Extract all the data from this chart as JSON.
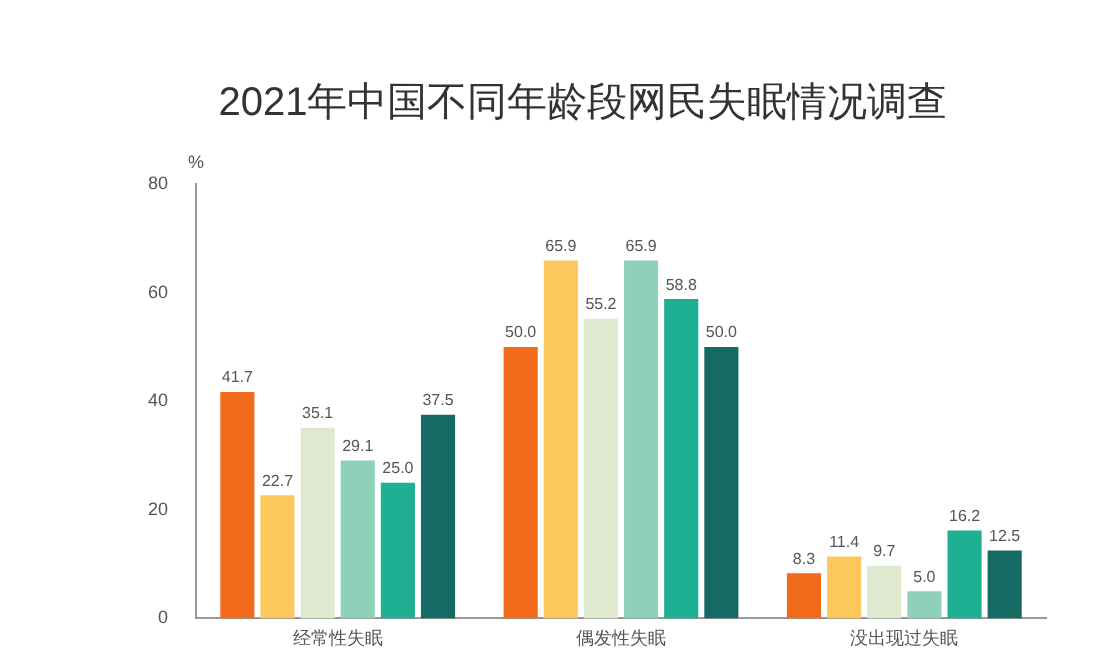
{
  "chart_data": {
    "type": "bar",
    "title": "2021年中国不同年龄段网民失眠情况调查",
    "ylabel": "%",
    "categories": [
      "经常性失眠",
      "偶发性失眠",
      "没出现过失眠"
    ],
    "ylim": [
      0,
      80
    ],
    "yticks": [
      0,
      20,
      40,
      60,
      80
    ],
    "grid": false,
    "legend": false,
    "series": [
      {
        "color": "#f26b1d",
        "values": [
          41.7,
          50.0,
          8.3
        ],
        "value_labels": [
          "41.7",
          "50.0",
          "8.3"
        ]
      },
      {
        "color": "#fcc85c",
        "values": [
          22.7,
          65.9,
          11.4
        ],
        "value_labels": [
          "22.7",
          "65.9",
          "11.4"
        ]
      },
      {
        "color": "#dfe9cf",
        "values": [
          35.1,
          55.2,
          9.7
        ],
        "value_labels": [
          "35.1",
          "55.2",
          "9.7"
        ]
      },
      {
        "color": "#8fd0b9",
        "values": [
          29.1,
          65.9,
          5.0
        ],
        "value_labels": [
          "29.1",
          "65.9",
          "5.0"
        ]
      },
      {
        "color": "#1faf92",
        "values": [
          25.0,
          58.8,
          16.2
        ],
        "value_labels": [
          "25.0",
          "58.8",
          "16.2"
        ]
      },
      {
        "color": "#156b64",
        "values": [
          37.5,
          50.0,
          12.5
        ],
        "value_labels": [
          "37.5",
          "50.0",
          "12.5"
        ]
      }
    ]
  }
}
